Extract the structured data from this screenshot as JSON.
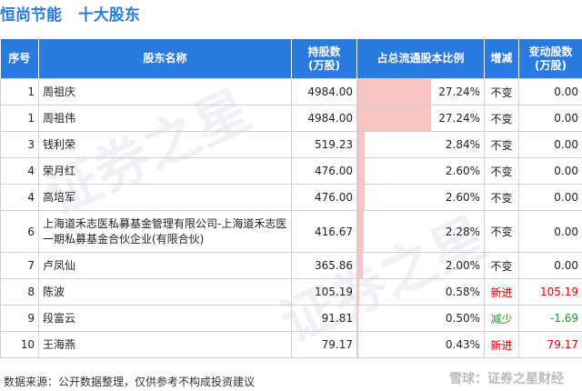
{
  "title": {
    "company": "恒尚节能",
    "section": "十大股东"
  },
  "headers": {
    "idx": "序号",
    "name": "股东名称",
    "shares_l1": "持股数",
    "shares_l2": "(万股)",
    "ratio": "占总流通股本比例",
    "change_type": "增减",
    "change_l1": "变动股数",
    "change_l2": "(万股)"
  },
  "rows": [
    {
      "idx": "1",
      "name": "周祖庆",
      "shares": "4984.00",
      "ratio": "27.24%",
      "ratio_value": 27.24,
      "change_type": "不变",
      "change": "0.00",
      "color": "default"
    },
    {
      "idx": "1",
      "name": "周祖伟",
      "shares": "4984.00",
      "ratio": "27.24%",
      "ratio_value": 27.24,
      "change_type": "不变",
      "change": "0.00",
      "color": "default"
    },
    {
      "idx": "3",
      "name": "钱利荣",
      "shares": "519.23",
      "ratio": "2.84%",
      "ratio_value": 2.84,
      "change_type": "不变",
      "change": "0.00",
      "color": "default"
    },
    {
      "idx": "4",
      "name": "荣月红",
      "shares": "476.00",
      "ratio": "2.60%",
      "ratio_value": 2.6,
      "change_type": "不变",
      "change": "0.00",
      "color": "default"
    },
    {
      "idx": "4",
      "name": "高培军",
      "shares": "476.00",
      "ratio": "2.60%",
      "ratio_value": 2.6,
      "change_type": "不变",
      "change": "0.00",
      "color": "default"
    },
    {
      "idx": "6",
      "name": "上海道禾志医私募基金管理有限公司-上海道禾志医一期私募基金合伙企业(有限合伙)",
      "shares": "416.67",
      "ratio": "2.28%",
      "ratio_value": 2.28,
      "change_type": "不变",
      "change": "0.00",
      "color": "default"
    },
    {
      "idx": "7",
      "name": "卢凤仙",
      "shares": "365.86",
      "ratio": "2.00%",
      "ratio_value": 2.0,
      "change_type": "不变",
      "change": "0.00",
      "color": "default"
    },
    {
      "idx": "8",
      "name": "陈波",
      "shares": "105.19",
      "ratio": "0.58%",
      "ratio_value": 0.58,
      "change_type": "新进",
      "change": "105.19",
      "color": "red"
    },
    {
      "idx": "9",
      "name": "段富云",
      "shares": "91.81",
      "ratio": "0.50%",
      "ratio_value": 0.5,
      "change_type": "减少",
      "change": "-1.69",
      "color": "green"
    },
    {
      "idx": "10",
      "name": "王海燕",
      "shares": "79.17",
      "ratio": "0.43%",
      "ratio_value": 0.43,
      "change_type": "新进",
      "change": "79.17",
      "color": "red"
    }
  ],
  "footer": "数据来源：公开数据整理，仅供参考不构成投资建议",
  "brand": "雪球：证券之星财经",
  "colors": {
    "header_bg": "#2a7be0",
    "bar": "#f8c4c4",
    "increase": "#e00000",
    "decrease": "#1a9a1a"
  }
}
